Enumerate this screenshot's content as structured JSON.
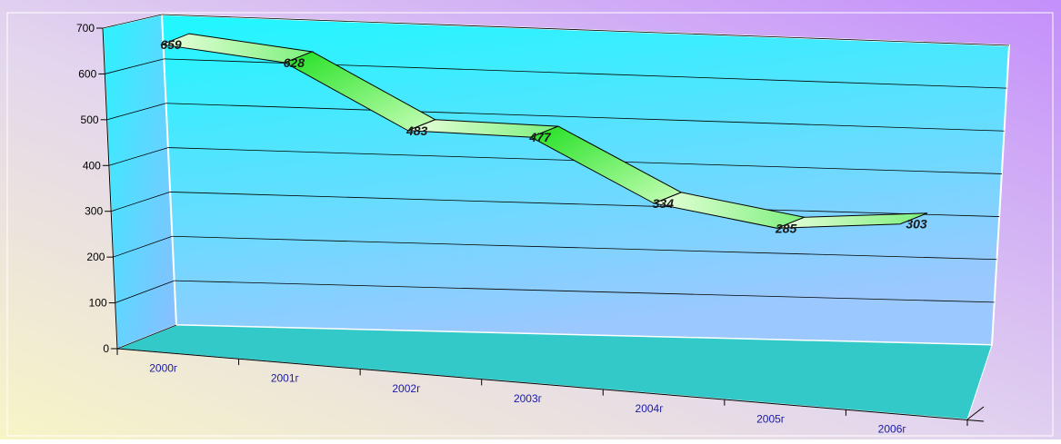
{
  "chart_data": {
    "type": "line",
    "style": "3d-ribbon",
    "categories": [
      "2000г",
      "2001г",
      "2002г",
      "2003г",
      "2004г",
      "2005г",
      "2006г"
    ],
    "values": [
      659,
      628,
      483,
      477,
      334,
      285,
      303
    ],
    "yticks": [
      "0",
      "100",
      "200",
      "300",
      "400",
      "500",
      "600",
      "700"
    ],
    "ylim": [
      0,
      700
    ],
    "grid": true,
    "legend": "none",
    "colors": {
      "ribbon_dark": "#33e633",
      "ribbon_light": "#e8ffd8",
      "wall_top": "#1ef8ff",
      "wall_bottom": "#96c8ff",
      "floor": "#33c9c9",
      "category_text": "#1a1aa8",
      "background_left": "#f6f4cc",
      "background_right": "#c693fb"
    }
  }
}
